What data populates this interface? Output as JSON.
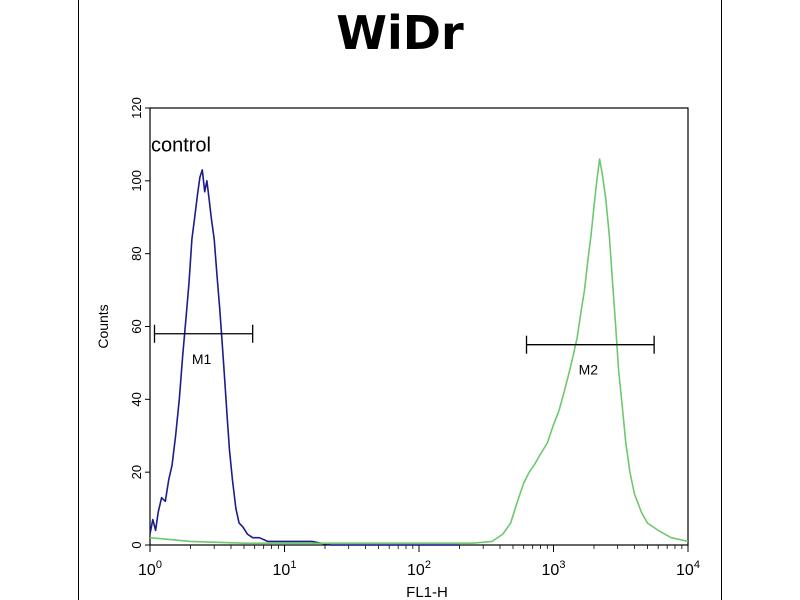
{
  "chart_data": {
    "type": "line",
    "title": "WiDr",
    "xlabel": "FL1-H",
    "ylabel": "Counts",
    "xscale": "log",
    "xlim": [
      1,
      10000
    ],
    "ylim": [
      0,
      120
    ],
    "x_ticks": [
      {
        "value": 1,
        "base": "10",
        "exp": "0"
      },
      {
        "value": 10,
        "base": "10",
        "exp": "1"
      },
      {
        "value": 100,
        "base": "10",
        "exp": "2"
      },
      {
        "value": 1000,
        "base": "10",
        "exp": "3"
      },
      {
        "value": 10000,
        "base": "10",
        "exp": "4"
      }
    ],
    "y_ticks": [
      "0",
      "20",
      "40",
      "60",
      "80",
      "100",
      "120"
    ],
    "annotations": [
      {
        "text": "control",
        "x": 1.7,
        "y": 108
      }
    ],
    "markers": [
      {
        "label": "M1",
        "x_start": 1.08,
        "x_end": 5.8,
        "y": 58,
        "color": "#000000"
      },
      {
        "label": "M2",
        "x_start": 630,
        "x_end": 5600,
        "y": 55,
        "color": "#000000"
      }
    ],
    "series": [
      {
        "color": "#1c1c8c",
        "points": [
          [
            1.0,
            3
          ],
          [
            1.05,
            7
          ],
          [
            1.1,
            4
          ],
          [
            1.15,
            9
          ],
          [
            1.22,
            13
          ],
          [
            1.3,
            12
          ],
          [
            1.38,
            18
          ],
          [
            1.46,
            22
          ],
          [
            1.55,
            30
          ],
          [
            1.65,
            40
          ],
          [
            1.75,
            52
          ],
          [
            1.85,
            62
          ],
          [
            1.95,
            72
          ],
          [
            2.05,
            84
          ],
          [
            2.15,
            90
          ],
          [
            2.25,
            96
          ],
          [
            2.35,
            101
          ],
          [
            2.45,
            103
          ],
          [
            2.55,
            97
          ],
          [
            2.65,
            100
          ],
          [
            2.75,
            95
          ],
          [
            2.85,
            90
          ],
          [
            3.0,
            84
          ],
          [
            3.15,
            74
          ],
          [
            3.3,
            65
          ],
          [
            3.45,
            55
          ],
          [
            3.6,
            45
          ],
          [
            3.75,
            35
          ],
          [
            3.9,
            26
          ],
          [
            4.1,
            18
          ],
          [
            4.35,
            10
          ],
          [
            4.6,
            6
          ],
          [
            4.9,
            5
          ],
          [
            5.3,
            3
          ],
          [
            5.8,
            2
          ],
          [
            6.5,
            2
          ],
          [
            7.5,
            1
          ],
          [
            9,
            1
          ],
          [
            12,
            1
          ],
          [
            16,
            1
          ],
          [
            22,
            0
          ],
          [
            35,
            0
          ],
          [
            60,
            0
          ],
          [
            100,
            0
          ],
          [
            200,
            0
          ]
        ]
      },
      {
        "color": "#6ec86e",
        "points": [
          [
            1.0,
            2
          ],
          [
            2,
            1
          ],
          [
            5,
            0.5
          ],
          [
            10,
            0.5
          ],
          [
            30,
            0.5
          ],
          [
            100,
            0.5
          ],
          [
            250,
            0.5
          ],
          [
            350,
            1
          ],
          [
            420,
            3
          ],
          [
            480,
            6
          ],
          [
            540,
            12
          ],
          [
            600,
            17
          ],
          [
            660,
            20
          ],
          [
            720,
            22
          ],
          [
            800,
            25
          ],
          [
            900,
            28
          ],
          [
            1000,
            33
          ],
          [
            1100,
            37
          ],
          [
            1200,
            42
          ],
          [
            1300,
            47
          ],
          [
            1400,
            52
          ],
          [
            1500,
            57
          ],
          [
            1600,
            64
          ],
          [
            1700,
            70
          ],
          [
            1800,
            78
          ],
          [
            1900,
            85
          ],
          [
            2000,
            93
          ],
          [
            2100,
            100
          ],
          [
            2200,
            106
          ],
          [
            2300,
            102
          ],
          [
            2450,
            95
          ],
          [
            2600,
            85
          ],
          [
            2750,
            72
          ],
          [
            2900,
            60
          ],
          [
            3050,
            48
          ],
          [
            3250,
            38
          ],
          [
            3450,
            28
          ],
          [
            3700,
            20
          ],
          [
            4000,
            14
          ],
          [
            4500,
            9
          ],
          [
            5000,
            6
          ],
          [
            6000,
            4
          ],
          [
            7500,
            2
          ],
          [
            10000,
            1
          ]
        ]
      }
    ]
  }
}
